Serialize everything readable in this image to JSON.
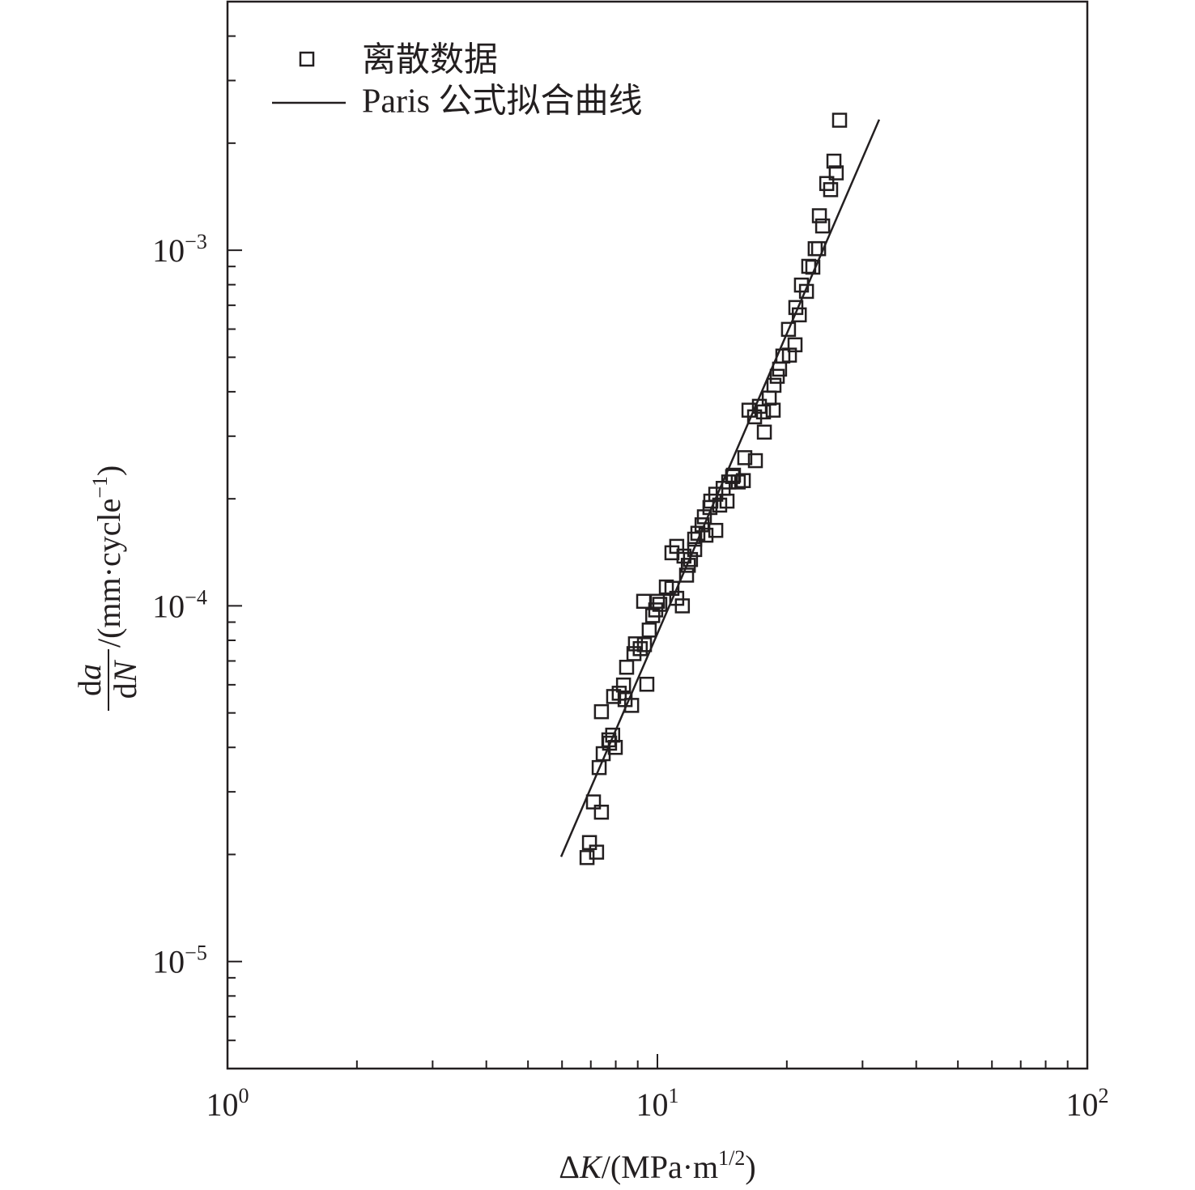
{
  "chart_data": {
    "type": "scatter",
    "title": "",
    "xscale": "log",
    "yscale": "log",
    "xlabel": {
      "prefix": "Δ",
      "italic": "K",
      "unit": "/(MPa·m",
      "sup": "1/2",
      "close": ")"
    },
    "ylabel": {
      "num_d": "d",
      "num_var": "a",
      "den_d": "d",
      "den_var": "N",
      "unit": "/(mm·cycle",
      "sup": "−1",
      "close": ")"
    },
    "xlim": [
      1,
      100
    ],
    "ylim": [
      5e-06,
      0.005
    ],
    "x_ticks": [
      {
        "value": 1,
        "base": "10",
        "exp": "0"
      },
      {
        "value": 10,
        "base": "10",
        "exp": "1"
      },
      {
        "value": 100,
        "base": "10",
        "exp": "2"
      }
    ],
    "y_ticks": [
      {
        "value": 1e-05,
        "base": "10",
        "exp": "−5"
      },
      {
        "value": 0.0001,
        "base": "10",
        "exp": "−4"
      },
      {
        "value": 0.001,
        "base": "10",
        "exp": "−3"
      }
    ],
    "grid": false,
    "legend": {
      "placement": "top-left",
      "entries": [
        {
          "label": "离散数据",
          "marker": "open-square"
        },
        {
          "label": "Paris 公式拟合曲线",
          "marker": "line"
        }
      ]
    },
    "series": [
      {
        "name": "离散数据",
        "type": "scatter",
        "x": [
          6.86,
          6.95,
          7.22,
          7.1,
          7.41,
          7.32,
          7.48,
          7.74,
          7.98,
          7.87,
          7.71,
          7.41,
          7.91,
          8.15,
          8.34,
          8.41,
          8.71,
          9.45,
          8.48,
          8.82,
          8.89,
          9.12,
          9.33,
          9.29,
          9.57,
          9.75,
          9.91,
          10.13,
          10.0,
          10.49,
          10.81,
          11.09,
          11.43,
          10.81,
          11.09,
          11.53,
          11.8,
          11.94,
          12.21,
          11.69,
          12.21,
          12.42,
          12.7,
          12.97,
          12.86,
          13.25,
          13.67,
          13.31,
          13.67,
          13.96,
          14.22,
          14.52,
          14.65,
          14.96,
          15.42,
          15.84,
          15.03,
          15.97,
          16.9,
          16.33,
          16.83,
          17.27,
          17.65,
          17.73,
          18.2,
          18.59,
          18.67,
          19.0,
          19.24,
          19.58,
          20.28,
          20.9,
          20.18,
          20.99,
          21.38,
          21.63,
          22.22,
          22.49,
          22.99,
          23.28,
          23.71,
          24.23,
          23.81,
          24.77,
          25.29,
          25.74,
          26.06,
          26.53
        ],
        "y": [
          1.96e-05,
          2.16e-05,
          2.03e-05,
          2.81e-05,
          2.63e-05,
          3.51e-05,
          3.84e-05,
          4.11e-05,
          4e-05,
          4.33e-05,
          4.2e-05,
          5.04e-05,
          5.56e-05,
          5.68e-05,
          5.99e-05,
          5.45e-05,
          5.25e-05,
          6.02e-05,
          6.72e-05,
          7.34e-05,
          7.82e-05,
          7.58e-05,
          7.78e-05,
          0.000103,
          8.55e-05,
          9.39e-05,
          9.74e-05,
          0.000101,
          0.000103,
          0.000113,
          0.000112,
          0.000105,
          0.0001,
          0.000141,
          0.000147,
          0.000138,
          0.00013,
          0.000135,
          0.000144,
          0.000122,
          0.000154,
          0.00016,
          0.000169,
          0.000158,
          0.000178,
          0.000189,
          0.000163,
          0.000197,
          0.000206,
          0.000192,
          0.000214,
          0.000197,
          0.000223,
          0.000231,
          0.000223,
          0.000225,
          0.000233,
          0.000261,
          0.000256,
          0.000355,
          0.00034,
          0.000364,
          0.000351,
          0.000308,
          0.000384,
          0.000355,
          0.000417,
          0.000442,
          0.000463,
          0.000504,
          0.000507,
          0.000542,
          0.000599,
          0.00069,
          0.000658,
          0.000798,
          0.000766,
          0.000901,
          0.000896,
          0.00101,
          0.00101,
          0.00117,
          0.00125,
          0.00154,
          0.00148,
          0.00178,
          0.00165,
          0.00232
        ]
      },
      {
        "name": "Paris 公式拟合曲线",
        "type": "line",
        "x": [
          5.97,
          32.8
        ],
        "y": [
          1.97e-05,
          0.00233
        ]
      }
    ],
    "colors": {
      "ink": "#231f20",
      "background": "#ffffff"
    }
  }
}
